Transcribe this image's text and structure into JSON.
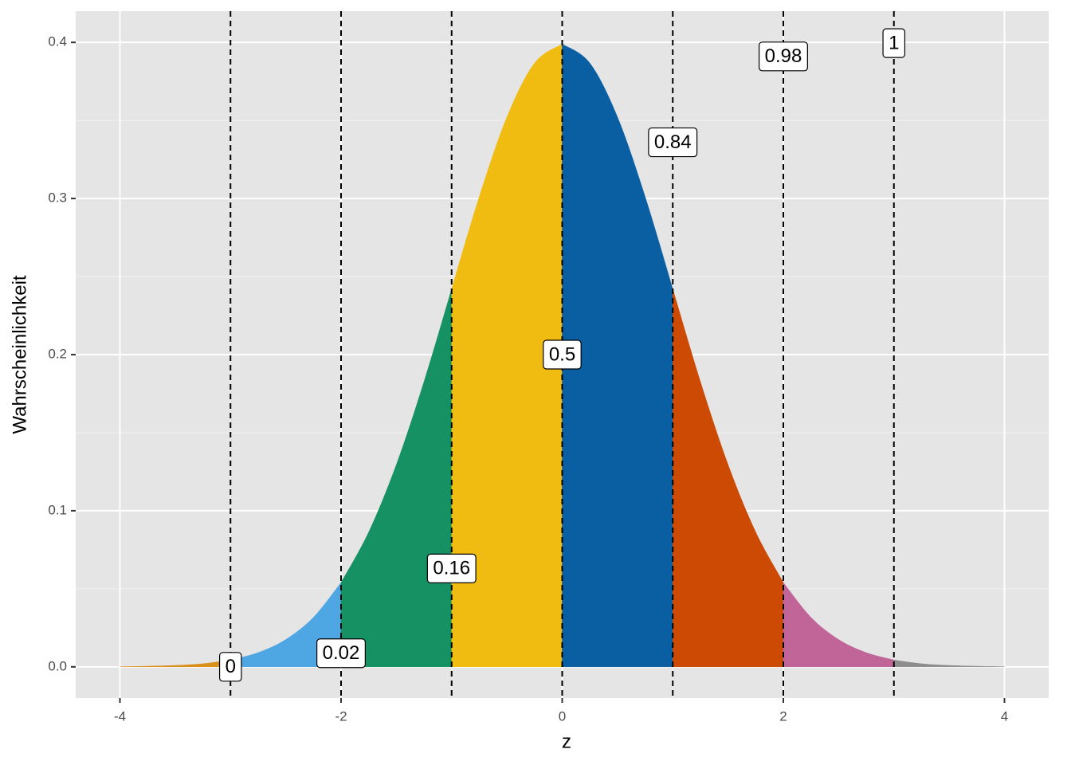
{
  "chart_data": {
    "type": "area",
    "x_label": "z",
    "y_label": "Wahrscheinlichkeit",
    "xlim": [
      -4.4,
      4.4
    ],
    "ylim": [
      -0.02,
      0.42
    ],
    "xticks": [
      -4,
      -2,
      0,
      2,
      4
    ],
    "yticks": [
      {
        "value": 0,
        "label": "0.0"
      },
      0.1,
      0.2,
      0.3,
      0.4
    ],
    "x_minor_ticks": [
      -3,
      -1,
      1,
      3
    ],
    "y_minor_ticks": [
      0.05,
      0.15,
      0.25,
      0.35
    ],
    "grid": true,
    "series": [
      {
        "color": "#D9901A",
        "x": [
          -4,
          -3.75,
          -3.5,
          -3.25,
          -3
        ],
        "values": [
          0.0001,
          0.0004,
          0.0009,
          0.002,
          0.0044
        ]
      },
      {
        "color": "#4EA6E3",
        "x": [
          -3,
          -2.75,
          -2.5,
          -2.25,
          -2
        ],
        "values": [
          0.0044,
          0.0091,
          0.0175,
          0.0317,
          0.054
        ]
      },
      {
        "color": "#159163",
        "x": [
          -2,
          -1.75,
          -1.5,
          -1.25,
          -1
        ],
        "values": [
          0.054,
          0.0863,
          0.1295,
          0.1826,
          0.242
        ]
      },
      {
        "color": "#F0BC12",
        "x": [
          -1,
          -0.75,
          -0.5,
          -0.25,
          0
        ],
        "values": [
          0.242,
          0.3011,
          0.3521,
          0.3867,
          0.3989
        ]
      },
      {
        "color": "#0A5FA2",
        "x": [
          0,
          0.25,
          0.5,
          0.75,
          1
        ],
        "values": [
          0.3989,
          0.3867,
          0.3521,
          0.3011,
          0.242
        ]
      },
      {
        "color": "#CC4A04",
        "x": [
          1,
          1.25,
          1.5,
          1.75,
          2
        ],
        "values": [
          0.242,
          0.1826,
          0.1295,
          0.0863,
          0.054
        ]
      },
      {
        "color": "#C16599",
        "x": [
          2,
          2.25,
          2.5,
          2.75,
          3
        ],
        "values": [
          0.054,
          0.0317,
          0.0175,
          0.0091,
          0.0044
        ]
      },
      {
        "color": "#8E8E8E",
        "x": [
          3,
          3.25,
          3.5,
          3.75,
          4
        ],
        "values": [
          0.0044,
          0.002,
          0.0009,
          0.0004,
          0.0001
        ]
      }
    ],
    "vlines": [
      -3,
      -2,
      -1,
      0,
      1,
      2,
      3
    ],
    "annotations": [
      {
        "x": -3,
        "y": 0.0,
        "text": "0"
      },
      {
        "x": -2,
        "y": 0.0087,
        "text": "0.02"
      },
      {
        "x": -1,
        "y": 0.063,
        "text": "0.16"
      },
      {
        "x": 0,
        "y": 0.2,
        "text": "0.5"
      },
      {
        "x": 1,
        "y": 0.336,
        "text": "0.84"
      },
      {
        "x": 2,
        "y": 0.391,
        "text": "0.98"
      },
      {
        "x": 3,
        "y": 0.3995,
        "text": "1"
      }
    ]
  }
}
